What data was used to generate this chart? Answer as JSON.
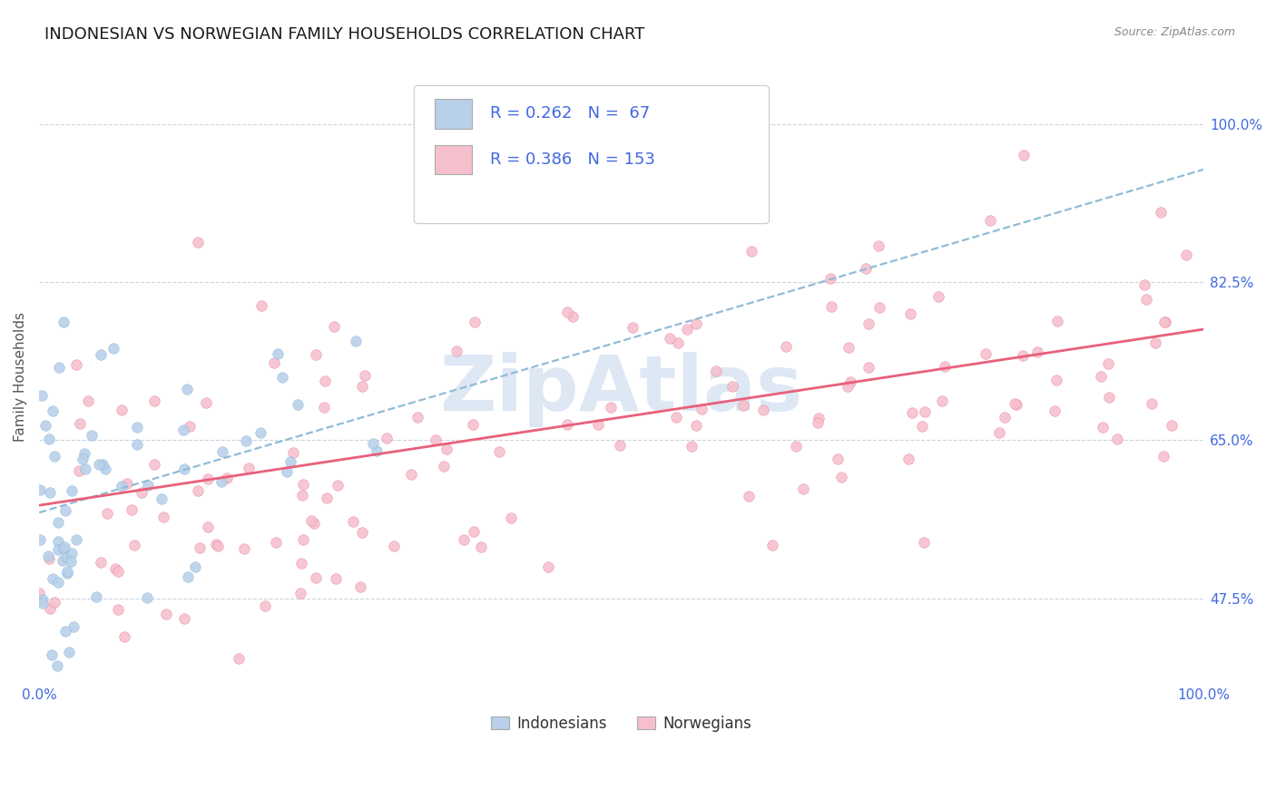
{
  "title": "INDONESIAN VS NORWEGIAN FAMILY HOUSEHOLDS CORRELATION CHART",
  "source": "Source: ZipAtlas.com",
  "ylabel": "Family Households",
  "xlim": [
    0.0,
    1.0
  ],
  "ylim": [
    0.38,
    1.06
  ],
  "yticks": [
    0.475,
    0.65,
    0.825,
    1.0
  ],
  "ytick_labels": [
    "47.5%",
    "65.0%",
    "82.5%",
    "100.0%"
  ],
  "xticks": [
    0.0,
    0.25,
    0.5,
    0.75,
    1.0
  ],
  "xtick_labels": [
    "0.0%",
    "",
    "",
    "",
    "100.0%"
  ],
  "indonesians": {
    "R": 0.262,
    "N": 67,
    "dot_color": "#b8d0ea",
    "dot_edge_color": "#7aaed0",
    "line_color": "#90bcd8",
    "line_style": "dashed",
    "intercept": 0.57,
    "slope": 0.38
  },
  "norwegians": {
    "R": 0.386,
    "N": 153,
    "dot_color": "#f5c0cc",
    "dot_edge_color": "#e87090",
    "line_color": "#e8607a",
    "line_style": "solid",
    "intercept": 0.578,
    "slope": 0.195
  },
  "axis_color": "#4169e1",
  "grid_color": "#ccd4e0",
  "watermark_text": "ZipAtlas",
  "watermark_color": "#c8d8ee",
  "background_color": "#ffffff",
  "title_fontsize": 13,
  "tick_fontsize": 11,
  "ylabel_fontsize": 11,
  "legend_fontsize": 13,
  "source_fontsize": 9
}
